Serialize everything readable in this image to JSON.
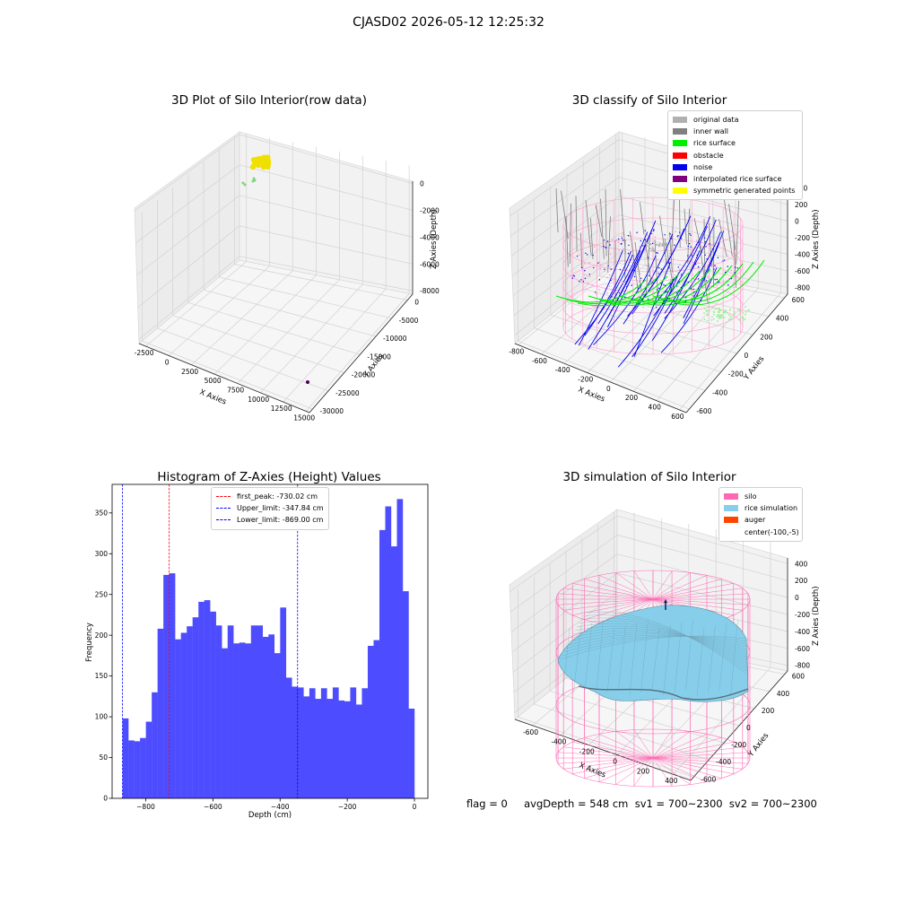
{
  "suptitle": "CJASD02 2026-05-12 12:25:32",
  "footer_text": "flag = 0     avgDepth = 548 cm  sv1 = 700~2300  sv2 = 700~2300",
  "chart_data": [
    {
      "type": "scatter",
      "title": "3D Plot of Silo Interior(row data)",
      "xlabel": "X Axies",
      "ylabel": "Y Axies",
      "zlabel": "Z Axies (Depth)",
      "x_ticks": [
        "-2500",
        "0",
        "2500",
        "5000",
        "7500",
        "10000",
        "12500",
        "15000"
      ],
      "y_ticks": [
        "0",
        "-5000",
        "-10000",
        "-15000",
        "-20000",
        "-25000",
        "-30000"
      ],
      "z_ticks": [
        "0",
        "-2000",
        "-4000",
        "-6000",
        "-8000"
      ],
      "colors": {
        "cluster": "#f0e000",
        "sparse": "#7ed67e",
        "outlier": "#4b0055"
      }
    },
    {
      "type": "scatter",
      "title": "3D classify of Silo Interior",
      "xlabel": "X Axies",
      "ylabel": "Y Axies",
      "zlabel": "Z Axies (Depth)",
      "x_ticks": [
        "-800",
        "-600",
        "-400",
        "-200",
        "0",
        "200",
        "400",
        "600"
      ],
      "y_ticks": [
        "600",
        "400",
        "200",
        "0",
        "-200",
        "-400",
        "-600"
      ],
      "z_ticks": [
        "400",
        "200",
        "0",
        "-200",
        "-400",
        "-600",
        "-800"
      ],
      "legend": [
        {
          "label": "original data",
          "color": "#b0b0b0"
        },
        {
          "label": "inner wall",
          "color": "#808080"
        },
        {
          "label": "rice surface",
          "color": "#00ee00"
        },
        {
          "label": "obstacle",
          "color": "#ff0000"
        },
        {
          "label": "noise",
          "color": "#0000ee"
        },
        {
          "label": "interpolated rice surface",
          "color": "#800080"
        },
        {
          "label": "symmetric generated points",
          "color": "#ffff00"
        }
      ]
    },
    {
      "type": "bar",
      "title": "Histogram of Z-Axies (Height) Values",
      "xlabel": "Depth (cm)",
      "ylabel": "Frequency",
      "xlim": [
        -900,
        40
      ],
      "ylim": [
        0,
        385
      ],
      "bar_color": "#4d4dff",
      "x_ticks": [
        -800,
        -600,
        -400,
        -200,
        0
      ],
      "x_tick_labels": [
        "−800",
        "−600",
        "−400",
        "−200",
        "0"
      ],
      "y_ticks": [
        0,
        50,
        100,
        150,
        200,
        250,
        300,
        350
      ],
      "bin_start": -869,
      "bin_width": 17.38,
      "values": [
        98,
        71,
        70,
        74,
        94,
        130,
        208,
        274,
        276,
        195,
        203,
        211,
        222,
        241,
        243,
        229,
        212,
        184,
        212,
        190,
        191,
        190,
        212,
        212,
        198,
        201,
        178,
        234,
        148,
        137,
        136,
        125,
        135,
        122,
        135,
        122,
        136,
        120,
        119,
        136,
        115,
        135,
        187,
        194,
        329,
        358,
        309,
        367,
        254,
        110
      ],
      "vlines": [
        {
          "label": "first_peak: -730.02 cm",
          "x": -730.02,
          "color": "#ff0000"
        },
        {
          "label": "Upper_limit: -347.84 cm",
          "x": -347.84,
          "color": "#0000ff"
        },
        {
          "label": "Lower_limit: -869.00 cm",
          "x": -869.0,
          "color": "#0000ff"
        }
      ]
    },
    {
      "type": "area",
      "title": "3D simulation of Silo Interior",
      "xlabel": "X Axies",
      "ylabel": "Y Axies",
      "zlabel": "Z Axies (Depth)",
      "x_ticks": [
        "-600",
        "-400",
        "-200",
        "0",
        "200",
        "400"
      ],
      "y_ticks": [
        "600",
        "400",
        "200",
        "0",
        "-200",
        "-400",
        "-600"
      ],
      "z_ticks": [
        "400",
        "200",
        "0",
        "-200",
        "-400",
        "-600",
        "-800"
      ],
      "legend": [
        {
          "label": "silo",
          "color": "#ff69b4"
        },
        {
          "label": "rice simulation",
          "color": "#87ceeb"
        },
        {
          "label": "auger",
          "color": "#ff4500"
        },
        {
          "label": "center(-100,-5)",
          "color": ""
        }
      ]
    }
  ]
}
